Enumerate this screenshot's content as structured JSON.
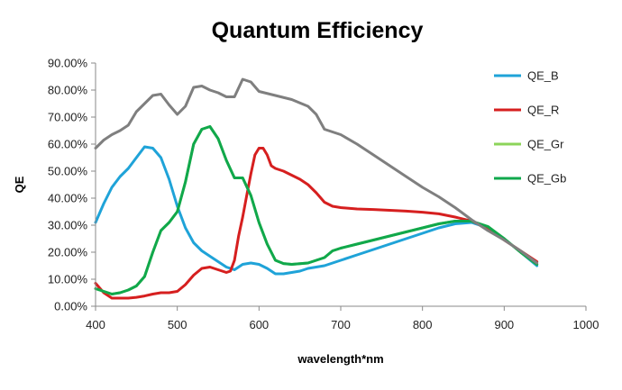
{
  "chart_data": {
    "type": "line",
    "title": "Quantum Efficiency",
    "xlabel": "wavelength*nm",
    "ylabel": "QE",
    "xlim": [
      400,
      1000
    ],
    "ylim": [
      0,
      0.9
    ],
    "x_ticks": [
      400,
      500,
      600,
      700,
      800,
      900,
      1000
    ],
    "x_tick_labels": [
      "400",
      "500",
      "600",
      "700",
      "800",
      "900",
      "1000"
    ],
    "y_ticks": [
      0,
      0.1,
      0.2,
      0.3,
      0.4,
      0.5,
      0.6,
      0.7,
      0.8,
      0.9
    ],
    "y_tick_labels": [
      "0.00%",
      "10.00%",
      "20.00%",
      "30.00%",
      "40.00%",
      "50.00%",
      "60.00%",
      "70.00%",
      "80.00%",
      "90.00%"
    ],
    "grid": false,
    "legend_position": "right",
    "series": [
      {
        "name": "QE_B",
        "color": "#1fa3d8",
        "points": [
          [
            400,
            0.31
          ],
          [
            410,
            0.38
          ],
          [
            420,
            0.44
          ],
          [
            430,
            0.48
          ],
          [
            440,
            0.51
          ],
          [
            450,
            0.55
          ],
          [
            460,
            0.59
          ],
          [
            470,
            0.585
          ],
          [
            480,
            0.55
          ],
          [
            490,
            0.47
          ],
          [
            500,
            0.37
          ],
          [
            510,
            0.29
          ],
          [
            520,
            0.235
          ],
          [
            530,
            0.205
          ],
          [
            540,
            0.185
          ],
          [
            550,
            0.165
          ],
          [
            560,
            0.145
          ],
          [
            570,
            0.135
          ],
          [
            580,
            0.155
          ],
          [
            590,
            0.16
          ],
          [
            600,
            0.155
          ],
          [
            610,
            0.14
          ],
          [
            620,
            0.12
          ],
          [
            630,
            0.12
          ],
          [
            640,
            0.125
          ],
          [
            650,
            0.13
          ],
          [
            660,
            0.14
          ],
          [
            670,
            0.145
          ],
          [
            680,
            0.15
          ],
          [
            700,
            0.17
          ],
          [
            720,
            0.19
          ],
          [
            740,
            0.21
          ],
          [
            760,
            0.23
          ],
          [
            780,
            0.25
          ],
          [
            800,
            0.27
          ],
          [
            820,
            0.29
          ],
          [
            840,
            0.305
          ],
          [
            860,
            0.31
          ],
          [
            880,
            0.29
          ],
          [
            900,
            0.25
          ],
          [
            920,
            0.2
          ],
          [
            940,
            0.15
          ]
        ]
      },
      {
        "name": "QE_R",
        "color": "#d61f1f",
        "points": [
          [
            400,
            0.085
          ],
          [
            410,
            0.05
          ],
          [
            420,
            0.03
          ],
          [
            430,
            0.03
          ],
          [
            440,
            0.03
          ],
          [
            450,
            0.033
          ],
          [
            460,
            0.038
          ],
          [
            470,
            0.045
          ],
          [
            480,
            0.05
          ],
          [
            490,
            0.05
          ],
          [
            500,
            0.055
          ],
          [
            510,
            0.08
          ],
          [
            520,
            0.115
          ],
          [
            530,
            0.14
          ],
          [
            540,
            0.145
          ],
          [
            550,
            0.135
          ],
          [
            560,
            0.125
          ],
          [
            565,
            0.13
          ],
          [
            570,
            0.17
          ],
          [
            575,
            0.26
          ],
          [
            580,
            0.33
          ],
          [
            585,
            0.41
          ],
          [
            590,
            0.49
          ],
          [
            595,
            0.56
          ],
          [
            600,
            0.585
          ],
          [
            605,
            0.585
          ],
          [
            610,
            0.56
          ],
          [
            615,
            0.52
          ],
          [
            620,
            0.51
          ],
          [
            630,
            0.5
          ],
          [
            640,
            0.485
          ],
          [
            650,
            0.47
          ],
          [
            660,
            0.45
          ],
          [
            670,
            0.42
          ],
          [
            680,
            0.385
          ],
          [
            690,
            0.37
          ],
          [
            700,
            0.365
          ],
          [
            720,
            0.36
          ],
          [
            740,
            0.358
          ],
          [
            760,
            0.355
          ],
          [
            780,
            0.352
          ],
          [
            800,
            0.348
          ],
          [
            820,
            0.342
          ],
          [
            840,
            0.33
          ],
          [
            860,
            0.315
          ],
          [
            880,
            0.29
          ],
          [
            900,
            0.245
          ],
          [
            920,
            0.205
          ],
          [
            940,
            0.165
          ]
        ]
      },
      {
        "name": "QE_Gr",
        "color": "#8cd45a",
        "points": [
          [
            400,
            0.065
          ],
          [
            410,
            0.055
          ],
          [
            420,
            0.045
          ],
          [
            430,
            0.05
          ],
          [
            440,
            0.06
          ],
          [
            450,
            0.075
          ],
          [
            460,
            0.11
          ],
          [
            470,
            0.2
          ],
          [
            480,
            0.28
          ],
          [
            490,
            0.31
          ],
          [
            500,
            0.35
          ],
          [
            510,
            0.46
          ],
          [
            520,
            0.6
          ],
          [
            530,
            0.655
          ],
          [
            540,
            0.665
          ],
          [
            550,
            0.62
          ],
          [
            560,
            0.54
          ],
          [
            570,
            0.475
          ],
          [
            580,
            0.475
          ],
          [
            590,
            0.41
          ],
          [
            600,
            0.31
          ],
          [
            610,
            0.23
          ],
          [
            620,
            0.17
          ],
          [
            630,
            0.158
          ],
          [
            640,
            0.155
          ],
          [
            660,
            0.16
          ],
          [
            680,
            0.18
          ],
          [
            690,
            0.205
          ],
          [
            700,
            0.215
          ],
          [
            720,
            0.23
          ],
          [
            740,
            0.245
          ],
          [
            760,
            0.26
          ],
          [
            780,
            0.275
          ],
          [
            800,
            0.29
          ],
          [
            820,
            0.305
          ],
          [
            840,
            0.315
          ],
          [
            860,
            0.315
          ],
          [
            880,
            0.295
          ],
          [
            900,
            0.25
          ],
          [
            920,
            0.2
          ],
          [
            940,
            0.155
          ]
        ]
      },
      {
        "name": "QE_Gb",
        "color": "#10a84c",
        "points": [
          [
            400,
            0.065
          ],
          [
            410,
            0.055
          ],
          [
            420,
            0.045
          ],
          [
            430,
            0.05
          ],
          [
            440,
            0.06
          ],
          [
            450,
            0.075
          ],
          [
            460,
            0.11
          ],
          [
            470,
            0.2
          ],
          [
            480,
            0.28
          ],
          [
            490,
            0.31
          ],
          [
            500,
            0.35
          ],
          [
            510,
            0.46
          ],
          [
            520,
            0.6
          ],
          [
            530,
            0.655
          ],
          [
            540,
            0.665
          ],
          [
            550,
            0.62
          ],
          [
            560,
            0.54
          ],
          [
            570,
            0.475
          ],
          [
            580,
            0.475
          ],
          [
            590,
            0.41
          ],
          [
            600,
            0.31
          ],
          [
            610,
            0.23
          ],
          [
            620,
            0.17
          ],
          [
            630,
            0.158
          ],
          [
            640,
            0.155
          ],
          [
            660,
            0.16
          ],
          [
            680,
            0.18
          ],
          [
            690,
            0.205
          ],
          [
            700,
            0.215
          ],
          [
            720,
            0.23
          ],
          [
            740,
            0.245
          ],
          [
            760,
            0.26
          ],
          [
            780,
            0.275
          ],
          [
            800,
            0.29
          ],
          [
            820,
            0.305
          ],
          [
            840,
            0.315
          ],
          [
            860,
            0.315
          ],
          [
            880,
            0.295
          ],
          [
            900,
            0.25
          ],
          [
            920,
            0.2
          ],
          [
            940,
            0.155
          ]
        ]
      },
      {
        "name": "",
        "color": "#7f7f7f",
        "points": [
          [
            400,
            0.585
          ],
          [
            410,
            0.615
          ],
          [
            420,
            0.635
          ],
          [
            430,
            0.65
          ],
          [
            440,
            0.67
          ],
          [
            450,
            0.72
          ],
          [
            460,
            0.75
          ],
          [
            470,
            0.78
          ],
          [
            480,
            0.785
          ],
          [
            490,
            0.745
          ],
          [
            500,
            0.71
          ],
          [
            510,
            0.74
          ],
          [
            520,
            0.81
          ],
          [
            530,
            0.815
          ],
          [
            540,
            0.8
          ],
          [
            550,
            0.79
          ],
          [
            560,
            0.775
          ],
          [
            570,
            0.775
          ],
          [
            580,
            0.84
          ],
          [
            590,
            0.83
          ],
          [
            600,
            0.795
          ],
          [
            620,
            0.78
          ],
          [
            640,
            0.765
          ],
          [
            660,
            0.74
          ],
          [
            670,
            0.71
          ],
          [
            680,
            0.655
          ],
          [
            700,
            0.635
          ],
          [
            720,
            0.6
          ],
          [
            740,
            0.56
          ],
          [
            760,
            0.52
          ],
          [
            780,
            0.48
          ],
          [
            800,
            0.44
          ],
          [
            820,
            0.405
          ],
          [
            840,
            0.365
          ],
          [
            860,
            0.32
          ],
          [
            880,
            0.28
          ],
          [
            900,
            0.245
          ],
          [
            920,
            0.205
          ],
          [
            940,
            0.16
          ]
        ]
      }
    ]
  }
}
